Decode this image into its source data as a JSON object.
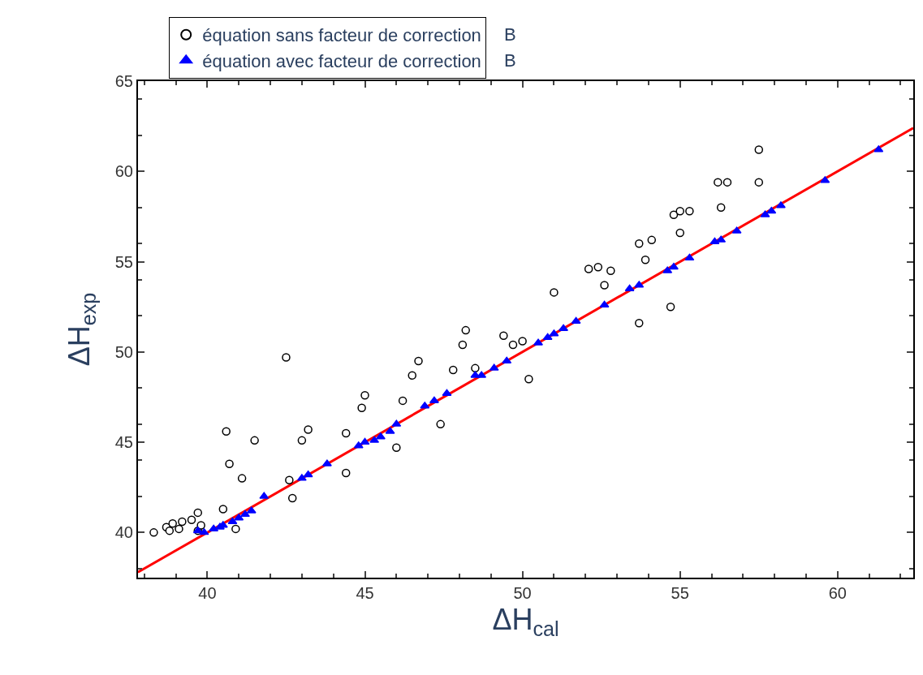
{
  "chart_data": {
    "type": "scatter",
    "xlabel": "ΔH$_{cal}$",
    "ylabel": "ΔH$_{exp}$",
    "xlim": [
      37.8,
      62.4
    ],
    "ylim": [
      37.5,
      65
    ],
    "xticks": [
      40,
      45,
      50,
      55,
      60
    ],
    "yticks": [
      40,
      45,
      50,
      55,
      60,
      65
    ],
    "legend": "top",
    "annotations": [
      "B",
      "B"
    ],
    "series": [
      {
        "name": "équation sans facteur de correction",
        "color": "#000000",
        "marker": "circle",
        "x": [
          38.3,
          38.7,
          38.8,
          38.9,
          39.1,
          39.2,
          39.5,
          39.7,
          39.8,
          39.7,
          40.5,
          40.9,
          40.7,
          40.6,
          41.5,
          41.1,
          42.5,
          42.6,
          42.7,
          43.0,
          43.2,
          44.4,
          44.4,
          44.9,
          45.0,
          46.0,
          46.2,
          46.5,
          46.7,
          47.4,
          47.8,
          48.1,
          48.2,
          48.5,
          49.4,
          49.7,
          50.0,
          50.2,
          51.0,
          52.1,
          52.4,
          52.8,
          52.6,
          53.7,
          53.9,
          53.7,
          54.1,
          54.7,
          54.8,
          55.0,
          55.3,
          55.0,
          56.2,
          56.3,
          56.5,
          57.5,
          57.5
        ],
        "values": [
          40.0,
          40.3,
          40.1,
          40.5,
          40.2,
          40.6,
          40.7,
          40.1,
          40.4,
          41.1,
          41.3,
          40.2,
          43.8,
          45.6,
          45.1,
          43.0,
          49.7,
          42.9,
          41.9,
          45.1,
          45.7,
          45.5,
          43.3,
          46.9,
          47.6,
          44.7,
          47.3,
          48.7,
          49.5,
          46.0,
          49.0,
          50.4,
          51.2,
          49.1,
          50.9,
          50.4,
          50.6,
          48.5,
          53.3,
          54.6,
          54.7,
          54.5,
          53.7,
          51.6,
          55.1,
          56.0,
          56.2,
          52.5,
          57.6,
          57.8,
          57.8,
          56.6,
          59.4,
          58.0,
          59.4,
          59.4,
          61.2
        ]
      },
      {
        "name": "équation avec facteur de correction",
        "color": "#0000ff",
        "marker": "triangle",
        "x": [
          39.7,
          39.9,
          40.2,
          40.4,
          40.5,
          40.8,
          41.0,
          41.2,
          41.4,
          41.8,
          43.0,
          43.2,
          43.8,
          44.8,
          45.0,
          45.3,
          45.5,
          45.8,
          46.0,
          46.9,
          47.2,
          47.6,
          48.5,
          48.7,
          49.1,
          49.5,
          50.5,
          50.8,
          51.0,
          51.3,
          51.7,
          52.6,
          53.4,
          53.7,
          54.6,
          54.8,
          55.3,
          56.1,
          56.3,
          56.8,
          57.7,
          57.9,
          58.2,
          59.6,
          61.3
        ],
        "values": [
          40.1,
          40.0,
          40.2,
          40.3,
          40.4,
          40.6,
          40.8,
          41.0,
          41.2,
          42.0,
          43.0,
          43.2,
          43.8,
          44.8,
          45.0,
          45.1,
          45.3,
          45.6,
          46.0,
          47.0,
          47.3,
          47.7,
          48.7,
          48.7,
          49.1,
          49.5,
          50.5,
          50.8,
          51.0,
          51.3,
          51.7,
          52.6,
          53.5,
          53.7,
          54.5,
          54.7,
          55.2,
          56.1,
          56.2,
          56.7,
          57.6,
          57.8,
          58.1,
          59.5,
          61.2
        ]
      },
      {
        "type": "line",
        "color": "#ff0000",
        "marker": "none",
        "line_style": "solid",
        "x": [
          37.8,
          62.4
        ],
        "values": [
          37.8,
          62.4
        ]
      }
    ]
  }
}
